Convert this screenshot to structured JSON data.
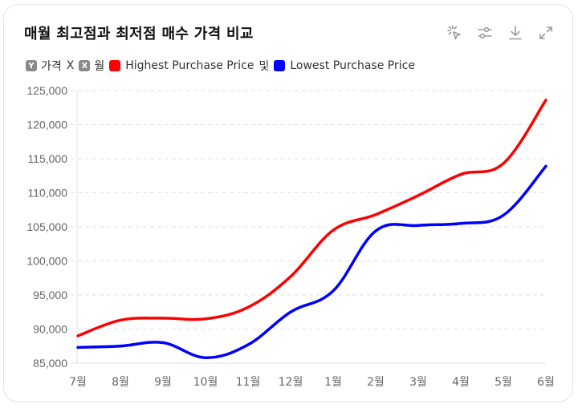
{
  "header": {
    "title": "매월 최고점과 최저점 매수 가격 비교",
    "tools": [
      {
        "name": "select-icon",
        "label": "select"
      },
      {
        "name": "filter-settings-icon",
        "label": "settings"
      },
      {
        "name": "download-icon",
        "label": "download"
      },
      {
        "name": "expand-icon",
        "label": "expand"
      }
    ]
  },
  "legend": {
    "y_chip": "Y",
    "y_label": "가격",
    "x_chip_prefix": "X",
    "x_chip": "X",
    "x_label": "월",
    "joiner": "및",
    "series": [
      {
        "name": "Highest Purchase Price",
        "color": "#ff0000"
      },
      {
        "name": "Lowest Purchase Price",
        "color": "#0000ff"
      }
    ]
  },
  "chart_data": {
    "type": "line",
    "title": "매월 최고점과 최저점 매수 가격 비교",
    "xlabel": "월",
    "ylabel": "가격",
    "categories": [
      "7월",
      "8월",
      "9월",
      "10월",
      "11월",
      "12월",
      "1월",
      "2월",
      "3월",
      "4월",
      "5월",
      "6월"
    ],
    "series": [
      {
        "name": "Highest Purchase Price",
        "color": "#ff0000",
        "values": [
          89000,
          91300,
          91600,
          91500,
          93200,
          97700,
          104500,
          106800,
          109600,
          112700,
          114300,
          123600
        ]
      },
      {
        "name": "Lowest Purchase Price",
        "color": "#0000ff",
        "values": [
          87300,
          87500,
          88000,
          85800,
          87700,
          92500,
          95600,
          104400,
          105200,
          105500,
          106700,
          113900
        ]
      }
    ],
    "ylim": [
      85000,
      125000
    ],
    "yticks": [
      125000,
      120000,
      115000,
      110000,
      105000,
      100000,
      95000,
      90000,
      85000
    ],
    "ytick_labels": [
      "125,000",
      "120,000",
      "115,000",
      "110,000",
      "105,000",
      "100,000",
      "95,000",
      "90,000",
      "85,000"
    ],
    "grid": true,
    "legend_position": "top-left"
  }
}
